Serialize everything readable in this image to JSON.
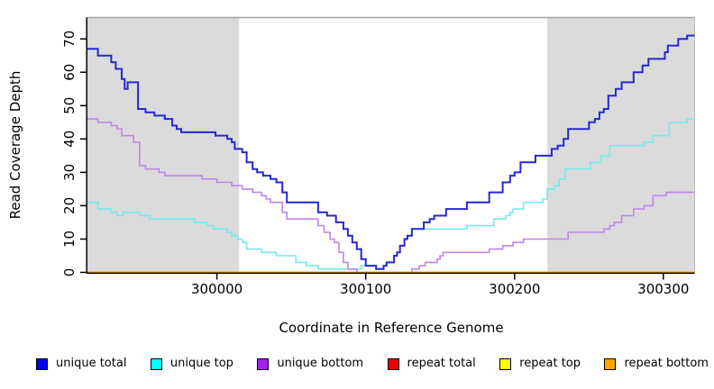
{
  "figure": {
    "x_axis_title": "Coordinate in Reference Genome",
    "y_axis_title": "Read Coverage Depth"
  },
  "legend": {
    "items": [
      {
        "label": "unique total",
        "color": "#0000ee"
      },
      {
        "label": "unique top",
        "color": "#00ffff"
      },
      {
        "label": "unique bottom",
        "color": "#a020f0"
      },
      {
        "label": "repeat total",
        "color": "#ee0000"
      },
      {
        "label": "repeat top",
        "color": "#ffff00"
      },
      {
        "label": "repeat bottom",
        "color": "#ffa500"
      }
    ]
  },
  "chart_data": {
    "type": "line",
    "step": true,
    "title": "",
    "xlabel": "Coordinate in Reference Genome",
    "ylabel": "Read Coverage Depth",
    "xlim": [
      299913,
      300321
    ],
    "ylim": [
      0,
      76.4
    ],
    "x_ticks": [
      300000,
      300100,
      300200,
      300300
    ],
    "y_ticks": [
      0,
      10,
      20,
      30,
      40,
      50,
      60,
      70
    ],
    "grid": false,
    "legend_position": "bottom",
    "shaded_regions": [
      {
        "from": 299913,
        "to": 300015,
        "color": "#dbdbdb"
      },
      {
        "from": 300222,
        "to": 300321,
        "color": "#dbdbdb"
      }
    ],
    "series": [
      {
        "name": "repeat total",
        "color": "#dd0000",
        "width": 1.6,
        "points": [
          [
            299913,
            0
          ],
          [
            300321,
            0
          ]
        ]
      },
      {
        "name": "repeat top",
        "color": "#ffff00",
        "width": 1.6,
        "points": [
          [
            299913,
            0
          ],
          [
            300321,
            0
          ]
        ]
      },
      {
        "name": "unique top",
        "color": "#76ebee",
        "width": 1.6,
        "points": [
          [
            299913,
            21
          ],
          [
            299920,
            19
          ],
          [
            299929,
            18
          ],
          [
            299933,
            17
          ],
          [
            299937,
            18
          ],
          [
            299948,
            17
          ],
          [
            299955,
            16
          ],
          [
            299985,
            15
          ],
          [
            299993,
            14
          ],
          [
            299998,
            13
          ],
          [
            300007,
            12
          ],
          [
            300010,
            11
          ],
          [
            300014,
            10
          ],
          [
            300017,
            9
          ],
          [
            300020,
            7
          ],
          [
            300030,
            6
          ],
          [
            300040,
            5
          ],
          [
            300053,
            3
          ],
          [
            300060,
            2
          ],
          [
            300068,
            1
          ],
          [
            300097,
            2
          ],
          [
            300107,
            1
          ],
          [
            300112,
            2
          ],
          [
            300114,
            3
          ],
          [
            300119,
            5
          ],
          [
            300121,
            6
          ],
          [
            300123,
            8
          ],
          [
            300126,
            10
          ],
          [
            300128,
            11
          ],
          [
            300131,
            13
          ],
          [
            300168,
            14
          ],
          [
            300186,
            16
          ],
          [
            300194,
            17
          ],
          [
            300197,
            18
          ],
          [
            300199,
            19
          ],
          [
            300206,
            21
          ],
          [
            300219,
            22
          ],
          [
            300222,
            25
          ],
          [
            300227,
            26
          ],
          [
            300230,
            28
          ],
          [
            300234,
            31
          ],
          [
            300251,
            33
          ],
          [
            300258,
            35
          ],
          [
            300264,
            38
          ],
          [
            300287,
            39
          ],
          [
            300293,
            41
          ],
          [
            300304,
            45
          ],
          [
            300316,
            46
          ]
        ]
      },
      {
        "name": "unique bottom",
        "color": "#bf86e8",
        "width": 1.6,
        "points": [
          [
            299913,
            46
          ],
          [
            299920,
            45
          ],
          [
            299929,
            44
          ],
          [
            299933,
            43
          ],
          [
            299936,
            41
          ],
          [
            299944,
            39
          ],
          [
            299948,
            32
          ],
          [
            299952,
            31
          ],
          [
            299961,
            30
          ],
          [
            299965,
            29
          ],
          [
            299990,
            28
          ],
          [
            300000,
            27
          ],
          [
            300010,
            26
          ],
          [
            300017,
            25
          ],
          [
            300024,
            24
          ],
          [
            300030,
            23
          ],
          [
            300033,
            22
          ],
          [
            300036,
            21
          ],
          [
            300044,
            18
          ],
          [
            300047,
            16
          ],
          [
            300068,
            14
          ],
          [
            300072,
            12
          ],
          [
            300076,
            10
          ],
          [
            300079,
            9
          ],
          [
            300082,
            6
          ],
          [
            300085,
            3
          ],
          [
            300088,
            1
          ],
          [
            300094,
            0
          ],
          [
            300131,
            1
          ],
          [
            300136,
            2
          ],
          [
            300140,
            3
          ],
          [
            300148,
            4
          ],
          [
            300150,
            5
          ],
          [
            300152,
            6
          ],
          [
            300183,
            7
          ],
          [
            300192,
            8
          ],
          [
            300199,
            9
          ],
          [
            300206,
            10
          ],
          [
            300236,
            12
          ],
          [
            300260,
            13
          ],
          [
            300264,
            14
          ],
          [
            300267,
            15
          ],
          [
            300272,
            17
          ],
          [
            300280,
            19
          ],
          [
            300287,
            20
          ],
          [
            300293,
            23
          ],
          [
            300302,
            24
          ]
        ]
      },
      {
        "name": "unique total",
        "color": "#2727d3",
        "width": 2,
        "points": [
          [
            299913,
            67
          ],
          [
            299920,
            65
          ],
          [
            299929,
            63
          ],
          [
            299932,
            61
          ],
          [
            299936,
            58
          ],
          [
            299938,
            55
          ],
          [
            299940,
            57
          ],
          [
            299947,
            49
          ],
          [
            299952,
            48
          ],
          [
            299958,
            47
          ],
          [
            299965,
            46
          ],
          [
            299970,
            44
          ],
          [
            299973,
            43
          ],
          [
            299976,
            42
          ],
          [
            299999,
            41
          ],
          [
            300007,
            40
          ],
          [
            300010,
            39
          ],
          [
            300012,
            37
          ],
          [
            300017,
            36
          ],
          [
            300020,
            33
          ],
          [
            300024,
            31
          ],
          [
            300027,
            30
          ],
          [
            300031,
            29
          ],
          [
            300036,
            28
          ],
          [
            300040,
            27
          ],
          [
            300044,
            24
          ],
          [
            300047,
            21
          ],
          [
            300068,
            18
          ],
          [
            300074,
            17
          ],
          [
            300080,
            15
          ],
          [
            300085,
            13
          ],
          [
            300088,
            11
          ],
          [
            300091,
            9
          ],
          [
            300094,
            7
          ],
          [
            300097,
            4
          ],
          [
            300100,
            2
          ],
          [
            300107,
            1
          ],
          [
            300112,
            2
          ],
          [
            300114,
            3
          ],
          [
            300119,
            5
          ],
          [
            300121,
            6
          ],
          [
            300123,
            8
          ],
          [
            300126,
            10
          ],
          [
            300128,
            11
          ],
          [
            300131,
            13
          ],
          [
            300139,
            15
          ],
          [
            300143,
            16
          ],
          [
            300146,
            17
          ],
          [
            300154,
            19
          ],
          [
            300168,
            21
          ],
          [
            300183,
            24
          ],
          [
            300192,
            27
          ],
          [
            300197,
            29
          ],
          [
            300200,
            30
          ],
          [
            300204,
            33
          ],
          [
            300214,
            35
          ],
          [
            300225,
            37
          ],
          [
            300229,
            38
          ],
          [
            300233,
            40
          ],
          [
            300236,
            43
          ],
          [
            300250,
            45
          ],
          [
            300254,
            46
          ],
          [
            300257,
            48
          ],
          [
            300260,
            49
          ],
          [
            300263,
            53
          ],
          [
            300268,
            55
          ],
          [
            300272,
            57
          ],
          [
            300280,
            60
          ],
          [
            300286,
            62
          ],
          [
            300290,
            64
          ],
          [
            300301,
            66
          ],
          [
            300303,
            68
          ],
          [
            300310,
            70
          ],
          [
            300316,
            71
          ]
        ]
      },
      {
        "name": "repeat bottom",
        "color": "#ff9800",
        "width": 1.8,
        "points": [
          [
            299913,
            0
          ],
          [
            300321,
            0
          ]
        ]
      }
    ]
  }
}
